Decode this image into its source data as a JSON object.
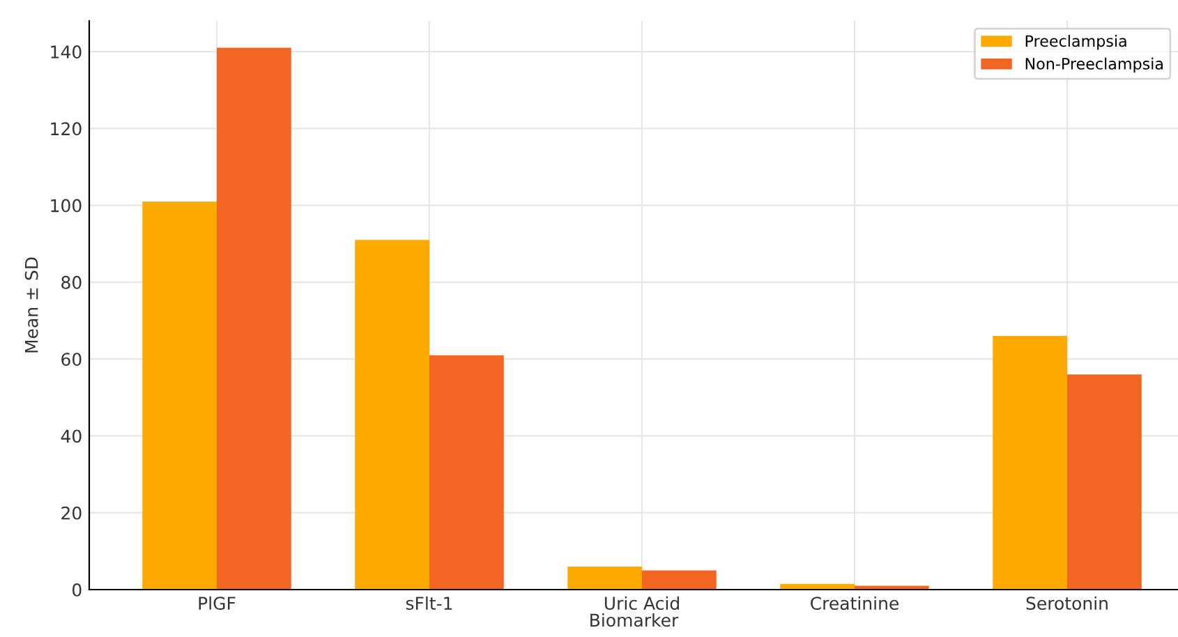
{
  "chart_data": {
    "type": "bar",
    "xlabel": "Biomarker",
    "ylabel": "Mean ± SD",
    "categories": [
      "PlGF",
      "sFlt-1",
      "Uric Acid",
      "Creatinine",
      "Serotonin"
    ],
    "series": [
      {
        "name": "Preeclampsia",
        "color": "#ffaa00",
        "values": [
          101,
          91,
          6,
          1.5,
          66
        ]
      },
      {
        "name": "Non-Preeclampsia",
        "color": "#f26522",
        "values": [
          141,
          61,
          5,
          1,
          56
        ]
      }
    ],
    "ylim": [
      0,
      148
    ],
    "yticks": [
      0,
      20,
      40,
      60,
      80,
      100,
      120,
      140
    ],
    "grid": true,
    "legend": "top right"
  }
}
